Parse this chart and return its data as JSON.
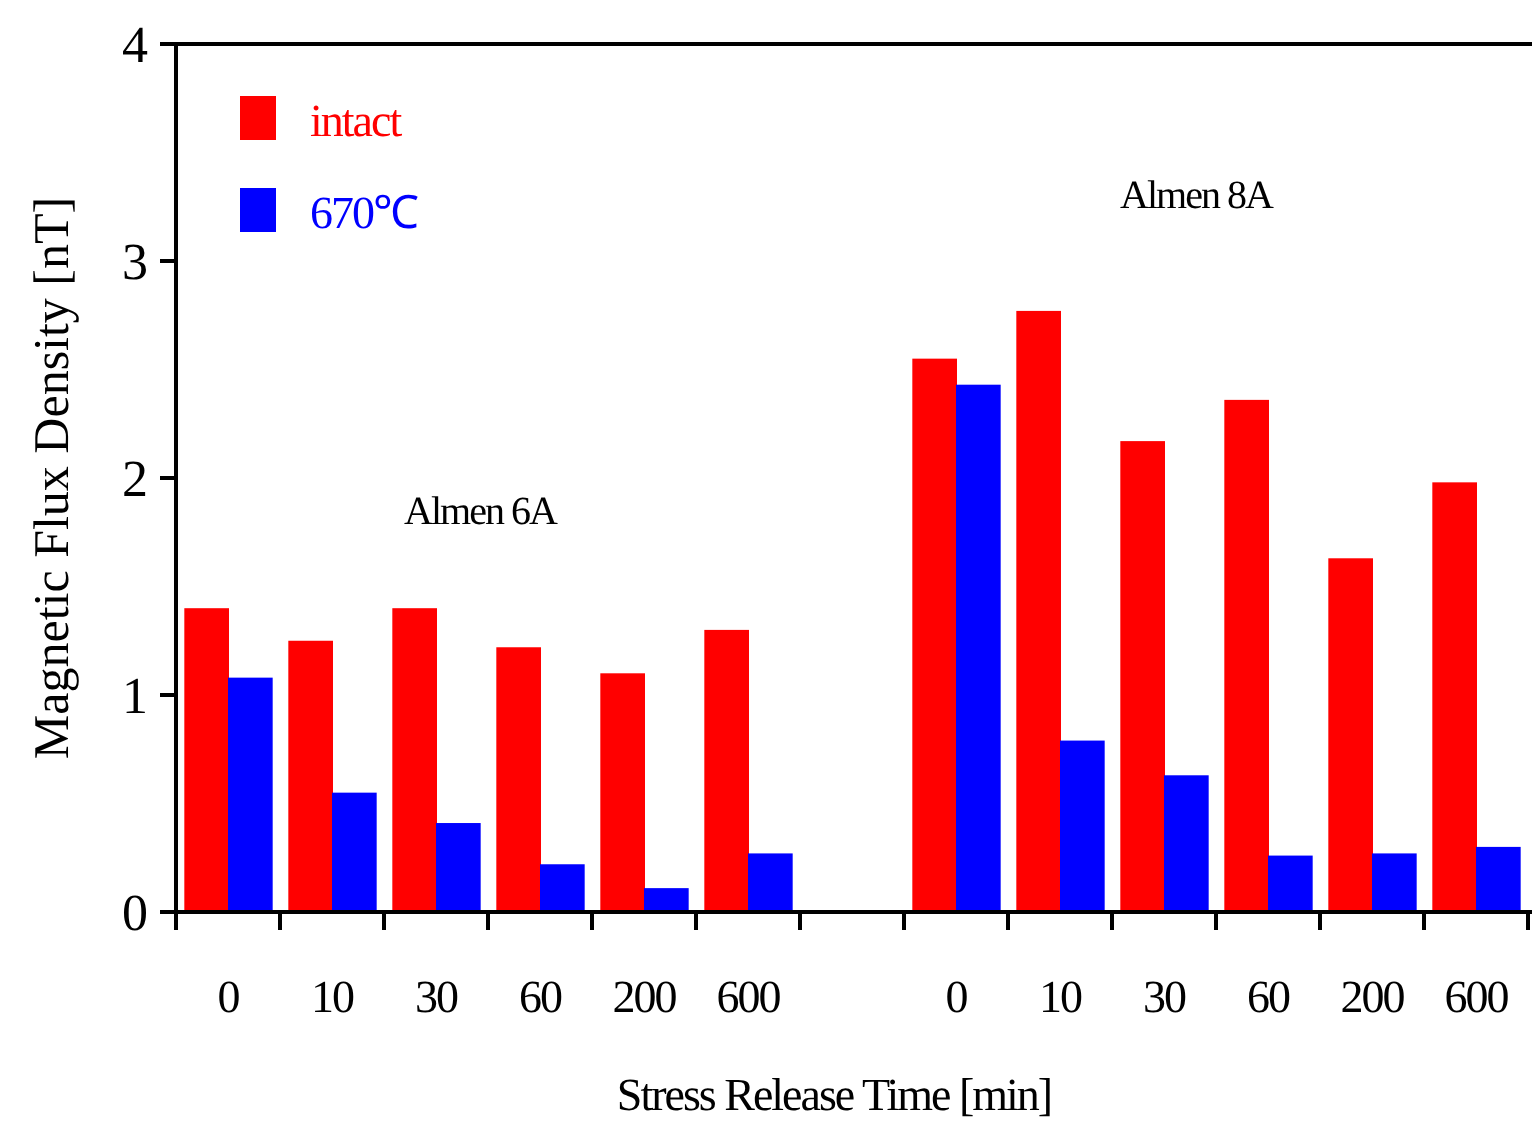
{
  "chart_data": {
    "type": "bar",
    "xlabel": "Stress Release Time [min]",
    "ylabel": "Magnetic Flux Density [nT]",
    "categories": [
      "0",
      "10",
      "30",
      "60",
      "200",
      "600",
      null,
      "0",
      "10",
      "30",
      "60",
      "200",
      "600"
    ],
    "series": [
      {
        "name": "intact",
        "color": "#ff0000",
        "values": [
          1.4,
          1.25,
          1.4,
          1.22,
          1.1,
          1.3,
          null,
          2.55,
          2.77,
          2.17,
          2.36,
          1.63,
          1.98
        ]
      },
      {
        "name": "670℃",
        "color": "#0000ff",
        "values": [
          1.08,
          0.55,
          0.41,
          0.22,
          0.11,
          0.27,
          null,
          2.43,
          0.79,
          0.63,
          0.26,
          0.27,
          0.3
        ]
      }
    ],
    "ylim": [
      0,
      4
    ],
    "yticks": [
      0,
      1,
      2,
      3,
      4
    ],
    "grid": false,
    "legend": "top left",
    "annotations": [
      "Almen 6A",
      "Almen 8A"
    ]
  }
}
